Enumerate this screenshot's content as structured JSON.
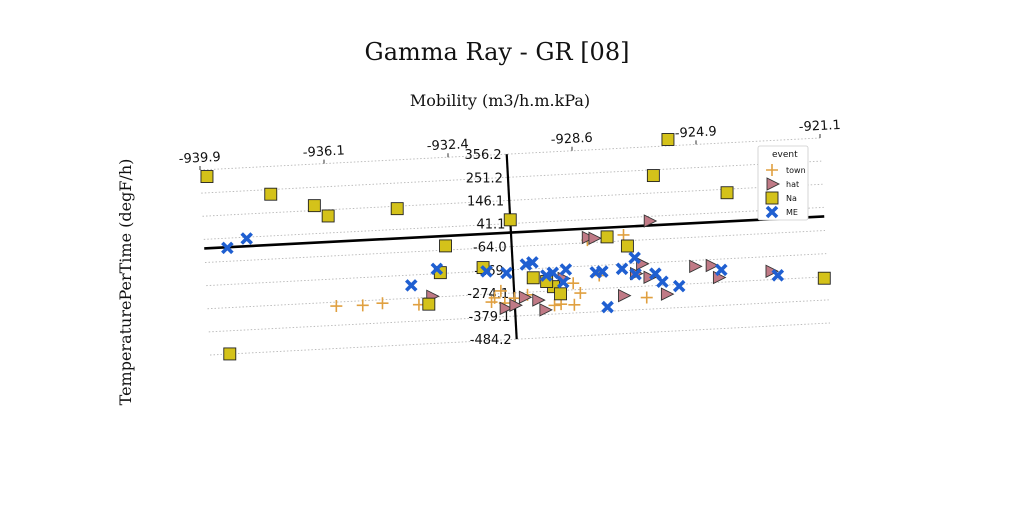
{
  "chart_data": {
    "type": "scatter",
    "title": "Gamma Ray - GR [08]",
    "xlabel": "Mobility (m3/h.m.kPa)",
    "ylabel": "TemperaturePerTime (degF/h)",
    "xlim": [
      -939.9,
      -921.1
    ],
    "ylim": [
      -484.2,
      356.2
    ],
    "x_ticks": [
      "-939.9",
      "-936.1",
      "-932.4",
      "-928.6",
      "-924.9",
      "-921.1"
    ],
    "y_ticks": [
      "356.2",
      "251.2",
      "146.1",
      "41.1",
      "-64.0",
      "-169.",
      "-274.1",
      "-379.1",
      "-484.2"
    ],
    "grid": true,
    "legend_position": "top-right",
    "legend_title": "event",
    "series": [
      {
        "name": "town",
        "marker": "plus",
        "color": "#e0a040",
        "points": [
          [
            -936.0,
            -292
          ],
          [
            -935.2,
            -295
          ],
          [
            -934.6,
            -290
          ],
          [
            -933.5,
            -305
          ],
          [
            -931.2,
            -292
          ],
          [
            -931.3,
            -310
          ],
          [
            -930.9,
            -318
          ],
          [
            -931.0,
            -262
          ],
          [
            -930.6,
            -298
          ],
          [
            -930.2,
            -286
          ],
          [
            -929.4,
            -340
          ],
          [
            -929.2,
            -336
          ],
          [
            -928.8,
            -342
          ],
          [
            -928.8,
            -244
          ],
          [
            -928.6,
            -290
          ],
          [
            -928.0,
            -215
          ],
          [
            -928.3,
            -52
          ],
          [
            -927.2,
            -37
          ],
          [
            -926.6,
            -326
          ]
        ]
      },
      {
        "name": "hat",
        "marker": "triangle-right",
        "color": "#c07a86",
        "points": [
          [
            -933.1,
            -270
          ],
          [
            -930.9,
            -342
          ],
          [
            -930.6,
            -330
          ],
          [
            -930.3,
            -296
          ],
          [
            -929.9,
            -312
          ],
          [
            -929.7,
            -358
          ],
          [
            -929.1,
            -220
          ],
          [
            -928.3,
            -40
          ],
          [
            -928.1,
            -45
          ],
          [
            -927.3,
            -312
          ],
          [
            -926.9,
            -215
          ],
          [
            -926.7,
            -172
          ],
          [
            -926.5,
            -235
          ],
          [
            -926.4,
            20
          ],
          [
            -926.0,
            -315
          ],
          [
            -925.1,
            -196
          ],
          [
            -924.6,
            -196
          ],
          [
            -924.4,
            -252
          ],
          [
            -922.8,
            -236
          ]
        ]
      },
      {
        "name": "Na",
        "marker": "square",
        "color": "#d4c21a",
        "points": [
          [
            -939.7,
            325
          ],
          [
            -939.3,
            -484
          ],
          [
            -937.8,
            230
          ],
          [
            -936.5,
            168
          ],
          [
            -936.1,
            118
          ],
          [
            -934.0,
            135
          ],
          [
            -933.2,
            -305
          ],
          [
            -932.6,
            -45
          ],
          [
            -932.8,
            -165
          ],
          [
            -931.5,
            -152
          ],
          [
            -930.6,
            58
          ],
          [
            -930.0,
            -210
          ],
          [
            -929.4,
            -255
          ],
          [
            -929.2,
            -289
          ],
          [
            -929.6,
            -230
          ],
          [
            -927.7,
            -42
          ],
          [
            -927.1,
            -88
          ],
          [
            -926.2,
            225
          ],
          [
            -925.7,
            385
          ],
          [
            -924.0,
            130
          ],
          [
            -921.2,
            -280
          ]
        ]
      },
      {
        "name": "ME",
        "marker": "x",
        "color": "#1f5fd1",
        "points": [
          [
            -939.2,
            -3
          ],
          [
            -938.6,
            35
          ],
          [
            -933.7,
            -216
          ],
          [
            -932.9,
            -147
          ],
          [
            -931.4,
            -170
          ],
          [
            -930.8,
            -182
          ],
          [
            -930.2,
            -148
          ],
          [
            -930.0,
            -140
          ],
          [
            -929.4,
            -192
          ],
          [
            -929.6,
            -203
          ],
          [
            -929.0,
            -180
          ],
          [
            -929.1,
            -237
          ],
          [
            -928.1,
            -200
          ],
          [
            -927.9,
            -198
          ],
          [
            -927.8,
            -360
          ],
          [
            -927.3,
            -190
          ],
          [
            -926.9,
            -218
          ],
          [
            -926.9,
            -143
          ],
          [
            -926.3,
            -220
          ],
          [
            -925.6,
            -282
          ],
          [
            -924.3,
            -218
          ],
          [
            -922.6,
            -256
          ],
          [
            -926.1,
            -258
          ]
        ]
      }
    ]
  }
}
